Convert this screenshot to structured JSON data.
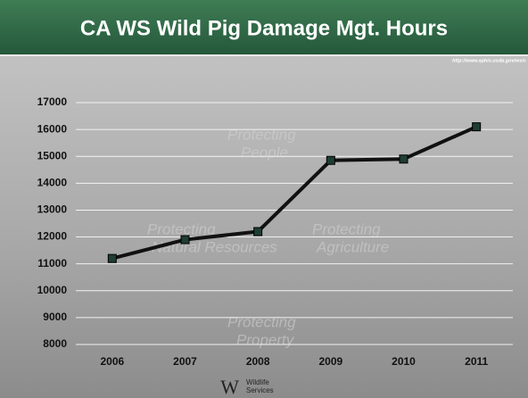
{
  "chart_data": {
    "type": "line",
    "title": "CA WS Wild Pig Damage Mgt. Hours",
    "categories": [
      "2006",
      "2007",
      "2008",
      "2009",
      "2010",
      "2011"
    ],
    "values": [
      11200,
      11900,
      12200,
      14850,
      14900,
      16100
    ],
    "color": "#111111",
    "marker_color": "#1f3d33",
    "ylim": [
      8000,
      17000
    ],
    "yticks": [
      8000,
      9000,
      10000,
      11000,
      12000,
      13000,
      14000,
      15000,
      16000,
      17000
    ],
    "grid": true
  },
  "source_url": "http://www.aphis.usda.gov/ws/c",
  "watermarks": [
    "Protecting",
    "People",
    "Protecting",
    "Natural Resources",
    "Protecting",
    "Agriculture",
    "Protecting",
    "Property"
  ],
  "footer": {
    "logo_mark": "W",
    "logo_text_1": "Wildlife",
    "logo_text_2": "Services"
  }
}
